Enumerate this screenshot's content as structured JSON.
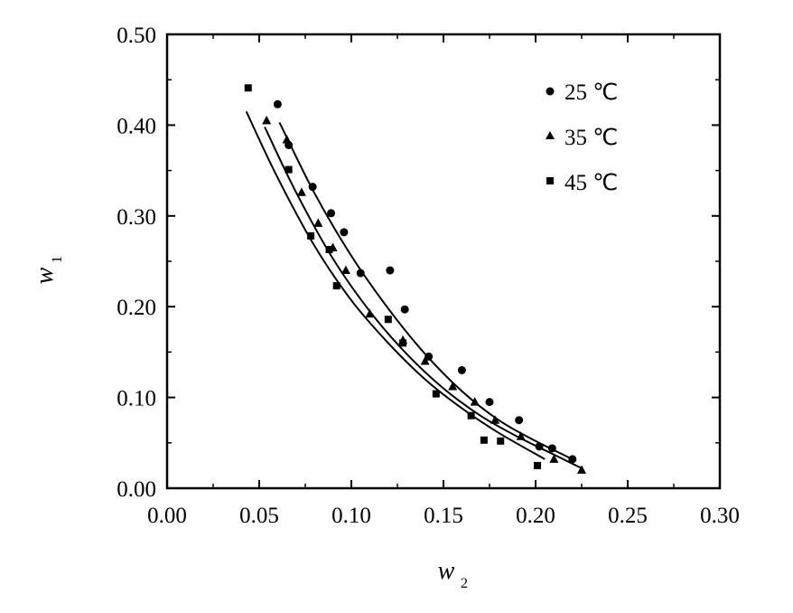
{
  "chart_data": {
    "type": "scatter",
    "xlabel": "w",
    "xlabel_sub": "2",
    "ylabel": "w",
    "ylabel_sub": "1",
    "xlim": [
      0.0,
      0.3
    ],
    "ylim": [
      0.0,
      0.5
    ],
    "xticks": [
      "0.00",
      "0.05",
      "0.10",
      "0.15",
      "0.20",
      "0.25",
      "0.30"
    ],
    "yticks": [
      "0.00",
      "0.10",
      "0.20",
      "0.30",
      "0.40",
      "0.50"
    ],
    "xtick_values": [
      0.0,
      0.05,
      0.1,
      0.15,
      0.2,
      0.25,
      0.3
    ],
    "ytick_values": [
      0.0,
      0.1,
      0.2,
      0.3,
      0.4,
      0.5
    ],
    "grid": false,
    "legend_position": "top-right",
    "series": [
      {
        "name": "25 ℃",
        "marker": "circle",
        "points": [
          [
            0.06,
            0.423
          ],
          [
            0.066,
            0.378
          ],
          [
            0.079,
            0.332
          ],
          [
            0.089,
            0.303
          ],
          [
            0.096,
            0.282
          ],
          [
            0.105,
            0.237
          ],
          [
            0.121,
            0.24
          ],
          [
            0.129,
            0.197
          ],
          [
            0.142,
            0.145
          ],
          [
            0.16,
            0.13
          ],
          [
            0.175,
            0.095
          ],
          [
            0.191,
            0.075
          ],
          [
            0.202,
            0.046
          ],
          [
            0.209,
            0.044
          ],
          [
            0.22,
            0.032
          ]
        ],
        "fit": [
          [
            0.061,
            0.403
          ],
          [
            0.08,
            0.325
          ],
          [
            0.1,
            0.256
          ],
          [
            0.12,
            0.198
          ],
          [
            0.14,
            0.148
          ],
          [
            0.16,
            0.107
          ],
          [
            0.18,
            0.075
          ],
          [
            0.2,
            0.052
          ],
          [
            0.222,
            0.03
          ]
        ]
      },
      {
        "name": "35 ℃",
        "marker": "triangle",
        "points": [
          [
            0.054,
            0.405
          ],
          [
            0.065,
            0.384
          ],
          [
            0.073,
            0.326
          ],
          [
            0.082,
            0.292
          ],
          [
            0.09,
            0.265
          ],
          [
            0.097,
            0.24
          ],
          [
            0.11,
            0.192
          ],
          [
            0.128,
            0.163
          ],
          [
            0.14,
            0.14
          ],
          [
            0.155,
            0.112
          ],
          [
            0.167,
            0.095
          ],
          [
            0.178,
            0.075
          ],
          [
            0.192,
            0.057
          ],
          [
            0.21,
            0.032
          ],
          [
            0.225,
            0.02
          ]
        ],
        "fit": [
          [
            0.053,
            0.398
          ],
          [
            0.07,
            0.326
          ],
          [
            0.09,
            0.253
          ],
          [
            0.11,
            0.195
          ],
          [
            0.13,
            0.148
          ],
          [
            0.15,
            0.11
          ],
          [
            0.17,
            0.08
          ],
          [
            0.19,
            0.057
          ],
          [
            0.21,
            0.037
          ],
          [
            0.225,
            0.022
          ]
        ]
      },
      {
        "name": "45 ℃",
        "marker": "square",
        "points": [
          [
            0.044,
            0.441
          ],
          [
            0.066,
            0.351
          ],
          [
            0.078,
            0.278
          ],
          [
            0.088,
            0.263
          ],
          [
            0.092,
            0.223
          ],
          [
            0.12,
            0.186
          ],
          [
            0.128,
            0.16
          ],
          [
            0.146,
            0.104
          ],
          [
            0.165,
            0.08
          ],
          [
            0.172,
            0.053
          ],
          [
            0.181,
            0.052
          ],
          [
            0.201,
            0.025
          ]
        ],
        "fit": [
          [
            0.043,
            0.415
          ],
          [
            0.06,
            0.342
          ],
          [
            0.08,
            0.267
          ],
          [
            0.1,
            0.207
          ],
          [
            0.12,
            0.16
          ],
          [
            0.14,
            0.12
          ],
          [
            0.16,
            0.088
          ],
          [
            0.18,
            0.061
          ],
          [
            0.205,
            0.032
          ]
        ]
      }
    ]
  }
}
